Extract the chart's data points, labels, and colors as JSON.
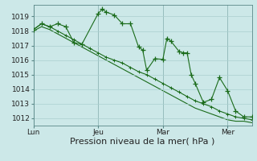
{
  "bg_color": "#cce8e8",
  "grid_color": "#aacfcf",
  "line_color": "#1a6b1a",
  "xlabel": "Pression niveau de la mer( hPa )",
  "xlabel_fontsize": 8,
  "ylim": [
    1011.5,
    1019.8
  ],
  "yticks": [
    1012,
    1013,
    1014,
    1015,
    1016,
    1017,
    1018,
    1019
  ],
  "xtick_labels": [
    "Lun",
    "Jeu",
    "Mar",
    "Mer"
  ],
  "xtick_positions": [
    0,
    16,
    32,
    48
  ],
  "vline_positions": [
    0,
    16,
    32,
    48
  ],
  "n_points": 55,
  "series1_x": [
    0,
    2,
    4,
    6,
    8,
    10,
    12,
    16,
    17,
    18,
    20,
    22,
    24,
    26,
    27,
    28,
    30,
    32,
    33,
    34,
    36,
    37,
    38,
    39,
    40,
    42,
    44,
    46,
    48,
    50,
    52,
    54
  ],
  "series1_y": [
    1018.1,
    1018.5,
    1018.3,
    1018.5,
    1018.3,
    1017.2,
    1017.1,
    1019.2,
    1019.5,
    1019.3,
    1019.1,
    1018.5,
    1018.5,
    1016.9,
    1016.7,
    1015.3,
    1016.1,
    1016.05,
    1017.5,
    1017.3,
    1016.6,
    1016.5,
    1016.5,
    1015.0,
    1014.4,
    1013.1,
    1013.3,
    1014.8,
    1013.9,
    1012.5,
    1012.1,
    1012.1
  ],
  "series2_x": [
    0,
    2,
    4,
    6,
    8,
    10,
    12,
    14,
    16,
    18,
    20,
    22,
    24,
    26,
    28,
    30,
    32,
    34,
    36,
    38,
    40,
    42,
    44,
    46,
    48,
    50,
    52,
    54
  ],
  "series2_y": [
    1018.1,
    1018.5,
    1018.3,
    1018.0,
    1017.7,
    1017.4,
    1017.1,
    1016.8,
    1016.5,
    1016.2,
    1016.0,
    1015.8,
    1015.5,
    1015.2,
    1015.0,
    1014.7,
    1014.4,
    1014.1,
    1013.8,
    1013.5,
    1013.2,
    1013.0,
    1012.8,
    1012.5,
    1012.3,
    1012.1,
    1012.0,
    1011.9
  ],
  "series3_x": [
    0,
    2,
    4,
    6,
    8,
    10,
    12,
    14,
    16,
    18,
    20,
    22,
    24,
    26,
    28,
    30,
    32,
    34,
    36,
    38,
    40,
    42,
    44,
    46,
    48,
    50,
    52,
    54
  ],
  "series3_y": [
    1018.0,
    1018.3,
    1018.1,
    1017.8,
    1017.5,
    1017.2,
    1016.9,
    1016.6,
    1016.3,
    1016.0,
    1015.7,
    1015.4,
    1015.1,
    1014.8,
    1014.5,
    1014.2,
    1013.9,
    1013.6,
    1013.3,
    1013.0,
    1012.7,
    1012.5,
    1012.3,
    1012.1,
    1011.9,
    1011.8,
    1011.8,
    1011.7
  ]
}
